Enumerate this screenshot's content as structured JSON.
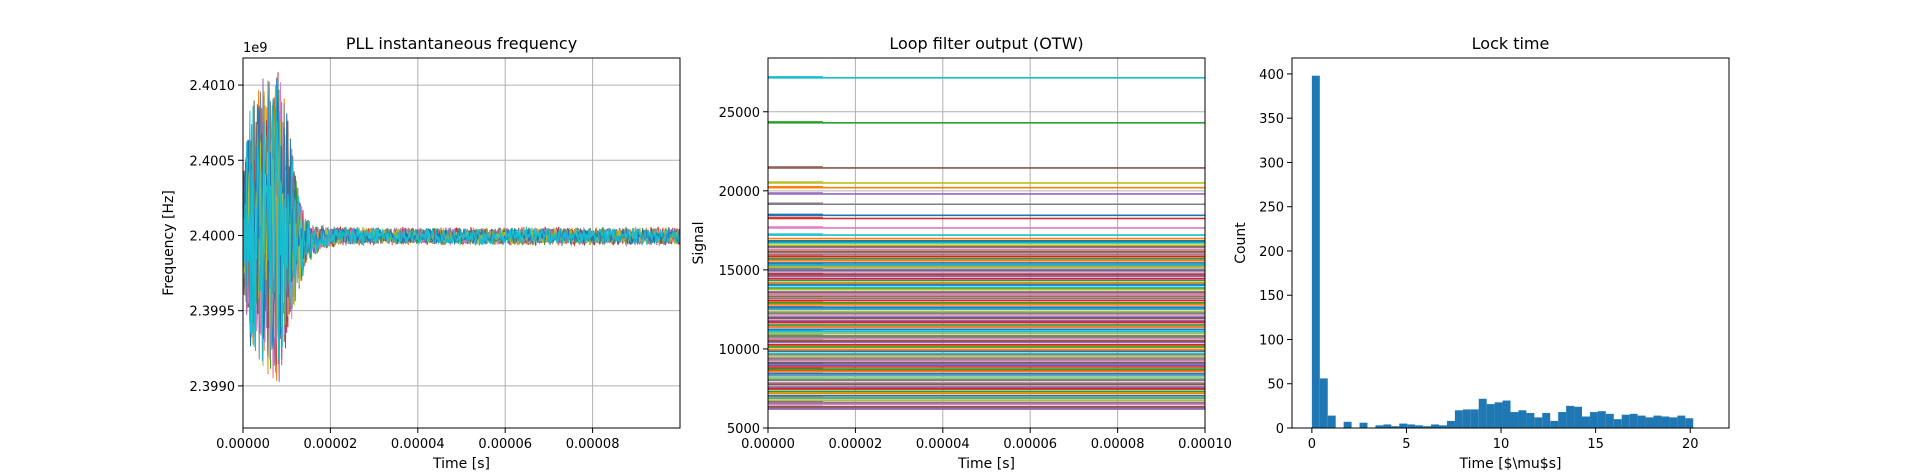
{
  "chart_data": [
    {
      "type": "line",
      "title": "PLL instantaneous frequency",
      "xlabel": "Time [s]",
      "ylabel": "Frequency [Hz]",
      "offset_text": "1e9",
      "xlim": [
        0,
        0.0001
      ],
      "ylim": [
        2.39872,
        2.40118
      ],
      "xticks": [
        0,
        2e-05,
        4e-05,
        6e-05,
        8e-05
      ],
      "xtick_labels": [
        "0.00000",
        "0.00002",
        "0.00004",
        "0.00006",
        "0.00008"
      ],
      "yticks": [
        2.399,
        2.3995,
        2.4,
        2.4005,
        2.401
      ],
      "ytick_labels": [
        "2.3990",
        "2.3995",
        "2.4000",
        "2.4005",
        "2.4010"
      ],
      "grid": true,
      "description_series": "many overlapping traces; initial large oscillation for t < ~0.000013 s then settling to a band around 2.40000e9",
      "envelope": {
        "t": [
          0,
          2e-06,
          4e-06,
          6e-06,
          8e-06,
          1e-05,
          1.2e-05,
          1.4e-05,
          1.6e-05,
          2e-05,
          2.5e-05,
          0.0001
        ],
        "upper": [
          2.4004,
          2.40095,
          2.40105,
          2.40108,
          2.4011,
          2.40085,
          2.4004,
          2.40015,
          2.40008,
          2.40007,
          2.40006,
          2.40006
        ],
        "lower": [
          2.3996,
          2.39918,
          2.3991,
          2.39905,
          2.39895,
          2.39925,
          2.39955,
          2.39975,
          2.39985,
          2.39992,
          2.39993,
          2.39993
        ]
      }
    },
    {
      "type": "line",
      "title": "Loop filter output (OTW)",
      "xlabel": "Time [s]",
      "ylabel": "Signal",
      "xlim": [
        0,
        0.0001
      ],
      "ylim": [
        5000,
        28400
      ],
      "xticks": [
        0,
        2e-05,
        4e-05,
        6e-05,
        8e-05,
        0.0001
      ],
      "xtick_labels": [
        "0.00000",
        "0.00002",
        "0.00004",
        "0.00006",
        "0.00008",
        "0.00010"
      ],
      "yticks": [
        5000,
        10000,
        15000,
        20000,
        25000
      ],
      "ytick_labels": [
        "5000",
        "10000",
        "15000",
        "20000",
        "25000"
      ],
      "grid": true,
      "levels": [
        27150,
        24300,
        21450,
        20500,
        20200,
        19800,
        19150,
        18450,
        18250,
        17650,
        17200,
        16750,
        16450,
        16150,
        15850,
        15600,
        15300,
        15000,
        14700,
        14400,
        14100,
        13800,
        13500,
        13200,
        12900,
        12600,
        12300,
        12000,
        11700,
        11400,
        11100,
        10800,
        10500,
        10200,
        9900,
        9600,
        9300,
        9000,
        8700,
        8400,
        8100,
        7800,
        7500,
        7200,
        6900,
        6600,
        6300
      ]
    },
    {
      "type": "bar",
      "title": "Lock time",
      "xlabel": "Time [$\\mu$s]",
      "ylabel": "Count",
      "xlim": [
        -1.05,
        22.05
      ],
      "ylim": [
        0,
        418
      ],
      "xticks": [
        0,
        5,
        10,
        15,
        20
      ],
      "xtick_labels": [
        "0",
        "5",
        "10",
        "15",
        "20"
      ],
      "yticks": [
        0,
        50,
        100,
        150,
        200,
        250,
        300,
        350,
        400
      ],
      "ytick_labels": [
        "0",
        "50",
        "100",
        "150",
        "200",
        "250",
        "300",
        "350",
        "400"
      ],
      "bin_start": 0,
      "bin_width": 0.42,
      "values": [
        398,
        56,
        14,
        0,
        7,
        0,
        6,
        0,
        3,
        4,
        2,
        5,
        4,
        3,
        2,
        4,
        3,
        8,
        20,
        21,
        21,
        33,
        27,
        29,
        31,
        18,
        20,
        17,
        12,
        17,
        8,
        18,
        25,
        24,
        13,
        18,
        19,
        16,
        10,
        15,
        16,
        14,
        12,
        14,
        13,
        12,
        14,
        11,
        0,
        0,
        0,
        0
      ]
    }
  ]
}
